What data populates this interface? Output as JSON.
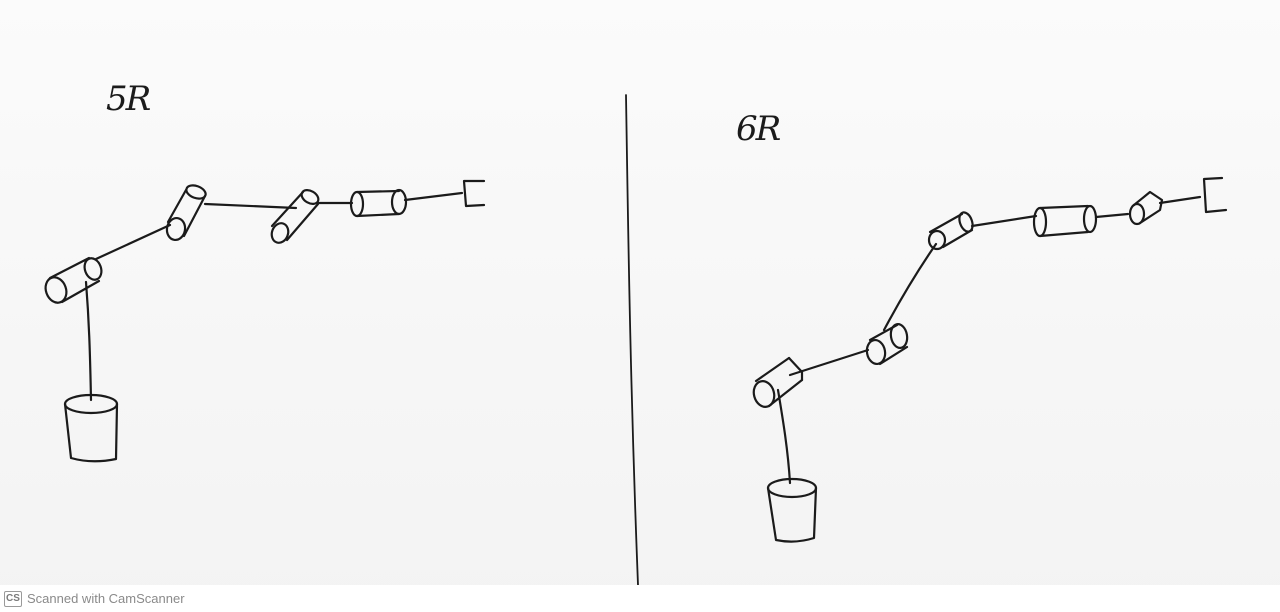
{
  "diagram": {
    "left_panel": {
      "label": "5R"
    },
    "right_panel": {
      "label": "6R"
    }
  },
  "footer": {
    "logo_text": "CS",
    "watermark_text": "Scanned with CamScanner"
  }
}
